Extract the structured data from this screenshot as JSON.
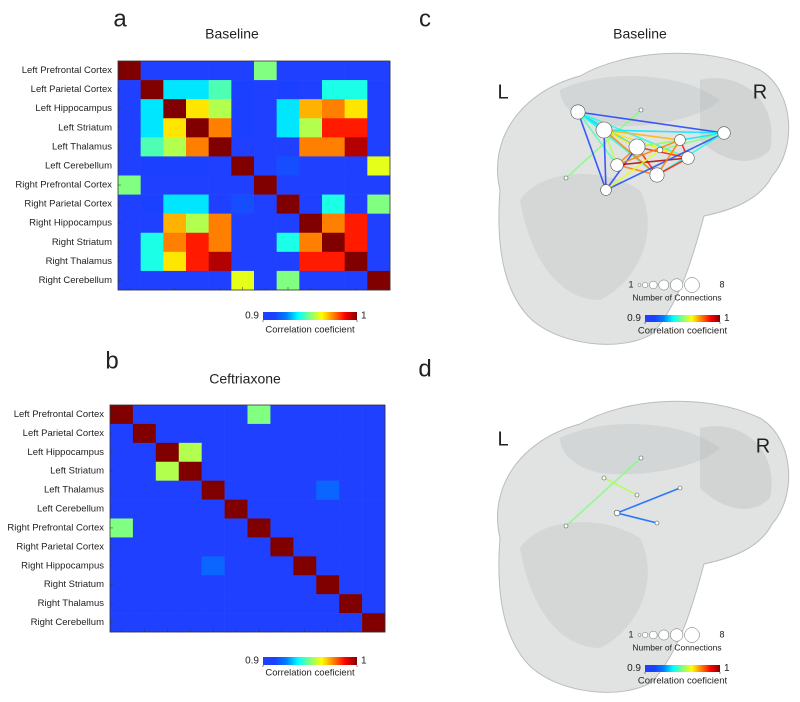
{
  "chart_data": [
    {
      "type": "heatmap",
      "panel_label": "a",
      "title": "Baseline",
      "y_labels": [
        "Left Prefrontal Cortex",
        "Left Parietal Cortex",
        "Left Hippocampus",
        "Left Striatum",
        "Left Thalamus",
        "Left Cerebellum",
        "Right Prefrontal Cortex",
        "Right Parietal Cortex",
        "Right Hippocampus",
        "Right Striatum",
        "Right Thalamus",
        "Right Cerebellum"
      ],
      "matrix": [
        [
          1,
          0.9,
          0.9,
          0.9,
          0.9,
          0.9,
          0.95,
          0.9,
          0.9,
          0.9,
          0.9,
          0.9
        ],
        [
          0.9,
          1,
          0.935,
          0.935,
          0.945,
          0.91,
          0.9,
          0.91,
          0.9,
          0.94,
          0.94,
          0.9
        ],
        [
          0.9,
          0.935,
          1,
          0.965,
          0.955,
          0.91,
          0.9,
          0.935,
          0.97,
          0.975,
          0.965,
          0.9
        ],
        [
          0.9,
          0.935,
          0.965,
          1,
          0.975,
          0.91,
          0.9,
          0.935,
          0.955,
          0.985,
          0.985,
          0.9
        ],
        [
          0.9,
          0.945,
          0.955,
          0.975,
          1,
          0.9,
          0.9,
          0.9,
          0.975,
          0.975,
          0.995,
          0.9
        ],
        [
          0.9,
          0.91,
          0.91,
          0.91,
          0.9,
          1,
          0.9,
          0.915,
          0.9,
          0.9,
          0.9,
          0.96
        ],
        [
          0.95,
          0.9,
          0.9,
          0.9,
          0.9,
          0.9,
          1,
          0.9,
          0.9,
          0.9,
          0.9,
          0.9
        ],
        [
          0.9,
          0.91,
          0.935,
          0.935,
          0.9,
          0.915,
          0.9,
          1,
          0.9,
          0.94,
          0.9,
          0.95
        ],
        [
          0.9,
          0.9,
          0.97,
          0.955,
          0.975,
          0.9,
          0.9,
          0.9,
          1,
          0.975,
          0.985,
          0.9
        ],
        [
          0.9,
          0.94,
          0.975,
          0.985,
          0.975,
          0.9,
          0.9,
          0.94,
          0.975,
          1,
          0.985,
          0.9
        ],
        [
          0.9,
          0.94,
          0.965,
          0.985,
          0.995,
          0.9,
          0.9,
          0.9,
          0.985,
          0.985,
          1,
          0.9
        ],
        [
          0.9,
          0.9,
          0.9,
          0.9,
          0.9,
          0.96,
          0.9,
          0.95,
          0.9,
          0.9,
          0.9,
          1
        ]
      ],
      "clim": [
        0.9,
        1
      ],
      "cbar_ticks": [
        0.9,
        1
      ],
      "cbar_label": "Correlation coeficient",
      "colormap": [
        "#2040ff",
        "#1a40ff",
        "#0080ff",
        "#00ffff",
        "#80ff80",
        "#ffff00",
        "#ff8000",
        "#ff0000",
        "#800000"
      ]
    },
    {
      "type": "heatmap",
      "panel_label": "b",
      "title": "Ceftriaxone",
      "y_labels": [
        "Left Prefrontal Cortex",
        "Left Parietal Cortex",
        "Left Hippocampus",
        "Left Striatum",
        "Left Thalamus",
        "Left Cerebellum",
        "Right Prefrontal Cortex",
        "Right Parietal Cortex",
        "Right Hippocampus",
        "Right Striatum",
        "Right Thalamus",
        "Right Cerebellum"
      ],
      "matrix": [
        [
          1,
          0.9,
          0.9,
          0.9,
          0.9,
          0.9,
          0.95,
          0.9,
          0.9,
          0.9,
          0.9,
          0.9
        ],
        [
          0.9,
          1,
          0.9,
          0.9,
          0.9,
          0.9,
          0.9,
          0.9,
          0.9,
          0.9,
          0.9,
          0.9
        ],
        [
          0.9,
          0.9,
          1,
          0.955,
          0.9,
          0.9,
          0.9,
          0.9,
          0.9,
          0.9,
          0.9,
          0.9
        ],
        [
          0.9,
          0.9,
          0.955,
          1,
          0.9,
          0.9,
          0.9,
          0.9,
          0.9,
          0.9,
          0.9,
          0.9
        ],
        [
          0.9,
          0.9,
          0.9,
          0.9,
          1,
          0.9,
          0.9,
          0.9,
          0.9,
          0.92,
          0.9,
          0.9
        ],
        [
          0.9,
          0.9,
          0.9,
          0.9,
          0.9,
          1,
          0.9,
          0.9,
          0.9,
          0.9,
          0.9,
          0.9
        ],
        [
          0.95,
          0.9,
          0.9,
          0.9,
          0.9,
          0.9,
          1,
          0.9,
          0.9,
          0.9,
          0.9,
          0.9
        ],
        [
          0.9,
          0.9,
          0.9,
          0.9,
          0.9,
          0.9,
          0.9,
          1,
          0.9,
          0.9,
          0.9,
          0.9
        ],
        [
          0.9,
          0.9,
          0.9,
          0.9,
          0.92,
          0.9,
          0.9,
          0.9,
          1,
          0.9,
          0.9,
          0.9
        ],
        [
          0.9,
          0.9,
          0.9,
          0.9,
          0.9,
          0.9,
          0.9,
          0.9,
          0.9,
          1,
          0.9,
          0.9
        ],
        [
          0.9,
          0.9,
          0.9,
          0.9,
          0.9,
          0.9,
          0.9,
          0.9,
          0.9,
          0.9,
          1,
          0.9
        ],
        [
          0.9,
          0.9,
          0.9,
          0.9,
          0.9,
          0.9,
          0.9,
          0.9,
          0.9,
          0.9,
          0.9,
          1
        ]
      ],
      "clim": [
        0.9,
        1
      ],
      "cbar_ticks": [
        0.9,
        1
      ],
      "cbar_label": "Correlation coeficient",
      "colormap": [
        "#2040ff",
        "#1a40ff",
        "#0080ff",
        "#00ffff",
        "#80ff80",
        "#ffff00",
        "#ff8000",
        "#ff0000",
        "#800000"
      ]
    },
    {
      "type": "network",
      "panel_label": "c",
      "title": "Baseline",
      "left_label": "L",
      "right_label": "R",
      "size_ticks": [
        1,
        8
      ],
      "size_label": "Number of Connections",
      "clim": [
        0.9,
        1
      ],
      "cbar_ticks": [
        0.9,
        1
      ],
      "cbar_label": "Correlation coeficient",
      "colormap": [
        "#2040ff",
        "#1a40ff",
        "#0080ff",
        "#00ffff",
        "#80ff80",
        "#ffff00",
        "#ff8000",
        "#ff0000",
        "#800000"
      ]
    },
    {
      "type": "network",
      "panel_label": "d",
      "left_label": "L",
      "right_label": "R",
      "size_ticks": [
        1,
        8
      ],
      "size_label": "Number of Connections",
      "clim": [
        0.9,
        1
      ],
      "cbar_ticks": [
        0.9,
        1
      ],
      "cbar_label": "Correlation coeficient",
      "colormap": [
        "#2040ff",
        "#1a40ff",
        "#0080ff",
        "#00ffff",
        "#80ff80",
        "#ffff00",
        "#ff8000",
        "#ff0000",
        "#800000"
      ]
    }
  ]
}
